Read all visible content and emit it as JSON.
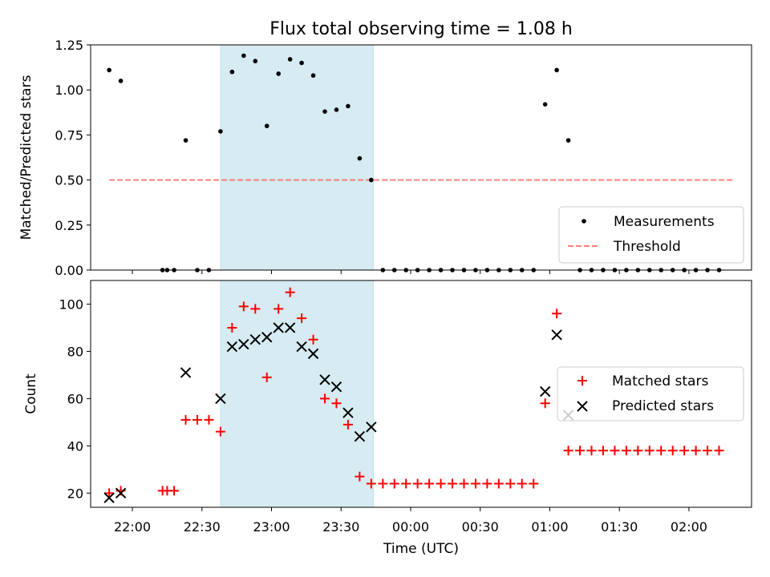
{
  "figure": {
    "title": "Flux total observing time = 1.08 h",
    "xlabel": "Time (UTC)"
  },
  "chart_data": [
    {
      "type": "scatter",
      "panel": "top",
      "title": "Flux total observing time = 1.08 h",
      "ylabel": "Matched/Predicted stars",
      "xlim": [
        "21:42",
        "02:27"
      ],
      "ylim": [
        0.0,
        1.25
      ],
      "yticks": [
        "0.00",
        "0.25",
        "0.50",
        "0.75",
        "1.00",
        "1.25"
      ],
      "highlight_span": [
        "22:38",
        "23:44"
      ],
      "highlight_color": "#add8e6",
      "threshold": {
        "name": "Threshold",
        "value": 0.5,
        "x_range": [
          "21:50",
          "02:19"
        ],
        "color": "#ff7f7f"
      },
      "legend": [
        "Measurements",
        "Threshold"
      ],
      "legend_position": "lower right",
      "series": [
        {
          "name": "Measurements",
          "color": "#000000",
          "x": [
            "21:50",
            "21:55",
            "22:13",
            "22:15",
            "22:18",
            "22:23",
            "22:28",
            "22:33",
            "22:38",
            "22:43",
            "22:48",
            "22:53",
            "22:58",
            "23:03",
            "23:08",
            "23:13",
            "23:18",
            "23:23",
            "23:28",
            "23:33",
            "23:38",
            "23:43",
            "23:48",
            "23:53",
            "23:58",
            "00:03",
            "00:08",
            "00:13",
            "00:18",
            "00:23",
            "00:28",
            "00:33",
            "00:38",
            "00:43",
            "00:48",
            "00:53",
            "00:58",
            "01:03",
            "01:08",
            "01:13",
            "01:18",
            "01:23",
            "01:28",
            "01:33",
            "01:38",
            "01:43",
            "01:48",
            "01:53",
            "01:58",
            "02:03",
            "02:08",
            "02:13"
          ],
          "y": [
            1.11,
            1.05,
            0.0,
            0.0,
            0.0,
            0.72,
            0.0,
            0.0,
            0.77,
            1.1,
            1.19,
            1.16,
            0.8,
            1.09,
            1.17,
            1.15,
            1.08,
            0.88,
            0.89,
            0.91,
            0.62,
            0.5,
            0.0,
            0.0,
            0.0,
            0.0,
            0.0,
            0.0,
            0.0,
            0.0,
            0.0,
            0.0,
            0.0,
            0.0,
            0.0,
            0.0,
            0.92,
            1.11,
            0.72,
            0.0,
            0.0,
            0.0,
            0.0,
            0.0,
            0.0,
            0.0,
            0.0,
            0.0,
            0.0,
            0.0,
            0.0,
            0.0
          ]
        }
      ]
    },
    {
      "type": "scatter",
      "panel": "bottom",
      "xlabel": "Time (UTC)",
      "ylabel": "Count",
      "xlim": [
        "21:42",
        "02:27"
      ],
      "ylim": [
        14,
        110
      ],
      "yticks": [
        "20",
        "40",
        "60",
        "80",
        "100"
      ],
      "xticks": [
        "22:00",
        "22:30",
        "23:00",
        "23:30",
        "00:00",
        "00:30",
        "01:00",
        "01:30",
        "02:00"
      ],
      "highlight_span": [
        "22:38",
        "23:44"
      ],
      "highlight_color": "#add8e6",
      "legend": [
        "Matched stars",
        "Predicted stars"
      ],
      "legend_position": "center right",
      "series": [
        {
          "name": "Matched stars",
          "marker": "+",
          "color": "#ff0000",
          "x": [
            "21:50",
            "21:55",
            "22:13",
            "22:15",
            "22:18",
            "22:23",
            "22:28",
            "22:33",
            "22:38",
            "22:43",
            "22:48",
            "22:53",
            "22:58",
            "23:03",
            "23:08",
            "23:13",
            "23:18",
            "23:23",
            "23:28",
            "23:33",
            "23:38",
            "23:43",
            "23:48",
            "23:53",
            "23:58",
            "00:03",
            "00:08",
            "00:13",
            "00:18",
            "00:23",
            "00:28",
            "00:33",
            "00:38",
            "00:43",
            "00:48",
            "00:53",
            "00:58",
            "01:03",
            "01:08",
            "01:13",
            "01:18",
            "01:23",
            "01:28",
            "01:33",
            "01:38",
            "01:43",
            "01:48",
            "01:53",
            "01:58",
            "02:03",
            "02:08",
            "02:13"
          ],
          "y": [
            20,
            21,
            21,
            21,
            21,
            51,
            51,
            51,
            46,
            90,
            99,
            98,
            69,
            98,
            105,
            94,
            85,
            60,
            58,
            49,
            27,
            24,
            24,
            24,
            24,
            24,
            24,
            24,
            24,
            24,
            24,
            24,
            24,
            24,
            24,
            24,
            58,
            96,
            38,
            38,
            38,
            38,
            38,
            38,
            38,
            38,
            38,
            38,
            38,
            38,
            38,
            38
          ]
        },
        {
          "name": "Predicted stars",
          "marker": "x",
          "color": "#000000",
          "x": [
            "21:50",
            "21:55",
            "22:23",
            "22:38",
            "22:43",
            "22:48",
            "22:53",
            "22:58",
            "23:03",
            "23:08",
            "23:13",
            "23:18",
            "23:23",
            "23:28",
            "23:33",
            "23:38",
            "23:43",
            "00:58",
            "01:03",
            "01:08"
          ],
          "y": [
            18,
            20,
            71,
            60,
            82,
            83,
            85,
            86,
            90,
            90,
            82,
            79,
            68,
            65,
            54,
            44,
            48,
            63,
            87,
            53
          ]
        }
      ]
    }
  ]
}
